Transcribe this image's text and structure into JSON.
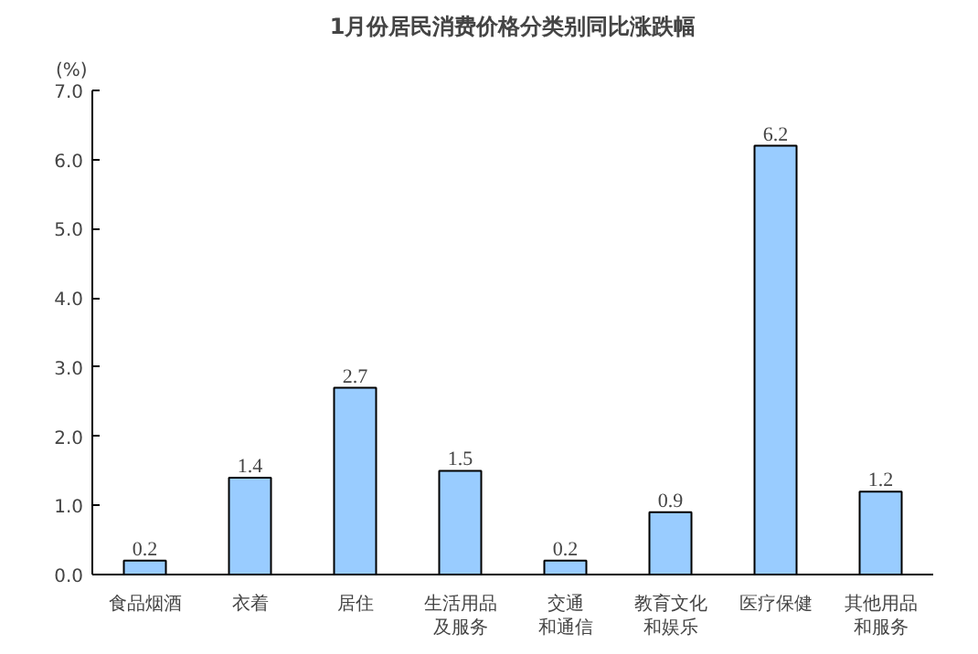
{
  "chart_data": {
    "type": "bar",
    "title": "1月份居民消费价格分类别同比涨跌幅",
    "ylabel": "(%)",
    "categories": [
      "食品烟酒",
      "衣着",
      "居住",
      "生活用品及服务",
      "交通和通信",
      "教育文化和娱乐",
      "医疗保健",
      "其他用品和服务"
    ],
    "values": [
      0.2,
      1.4,
      2.7,
      1.5,
      0.2,
      0.9,
      6.2,
      1.2
    ],
    "color": "#99ccff",
    "ylim": [
      0,
      7
    ],
    "yticks": [
      {
        "value": 0,
        "label": "0.0"
      },
      {
        "value": 1,
        "label": "1.0"
      },
      {
        "value": 2,
        "label": "2.0"
      },
      {
        "value": 3,
        "label": "3.0"
      },
      {
        "value": 4,
        "label": "4.0"
      },
      {
        "value": 5,
        "label": "5.0"
      },
      {
        "value": 6,
        "label": "6.0"
      },
      {
        "value": 7,
        "label": "7.0"
      }
    ],
    "data_labels": true,
    "grid": false
  }
}
